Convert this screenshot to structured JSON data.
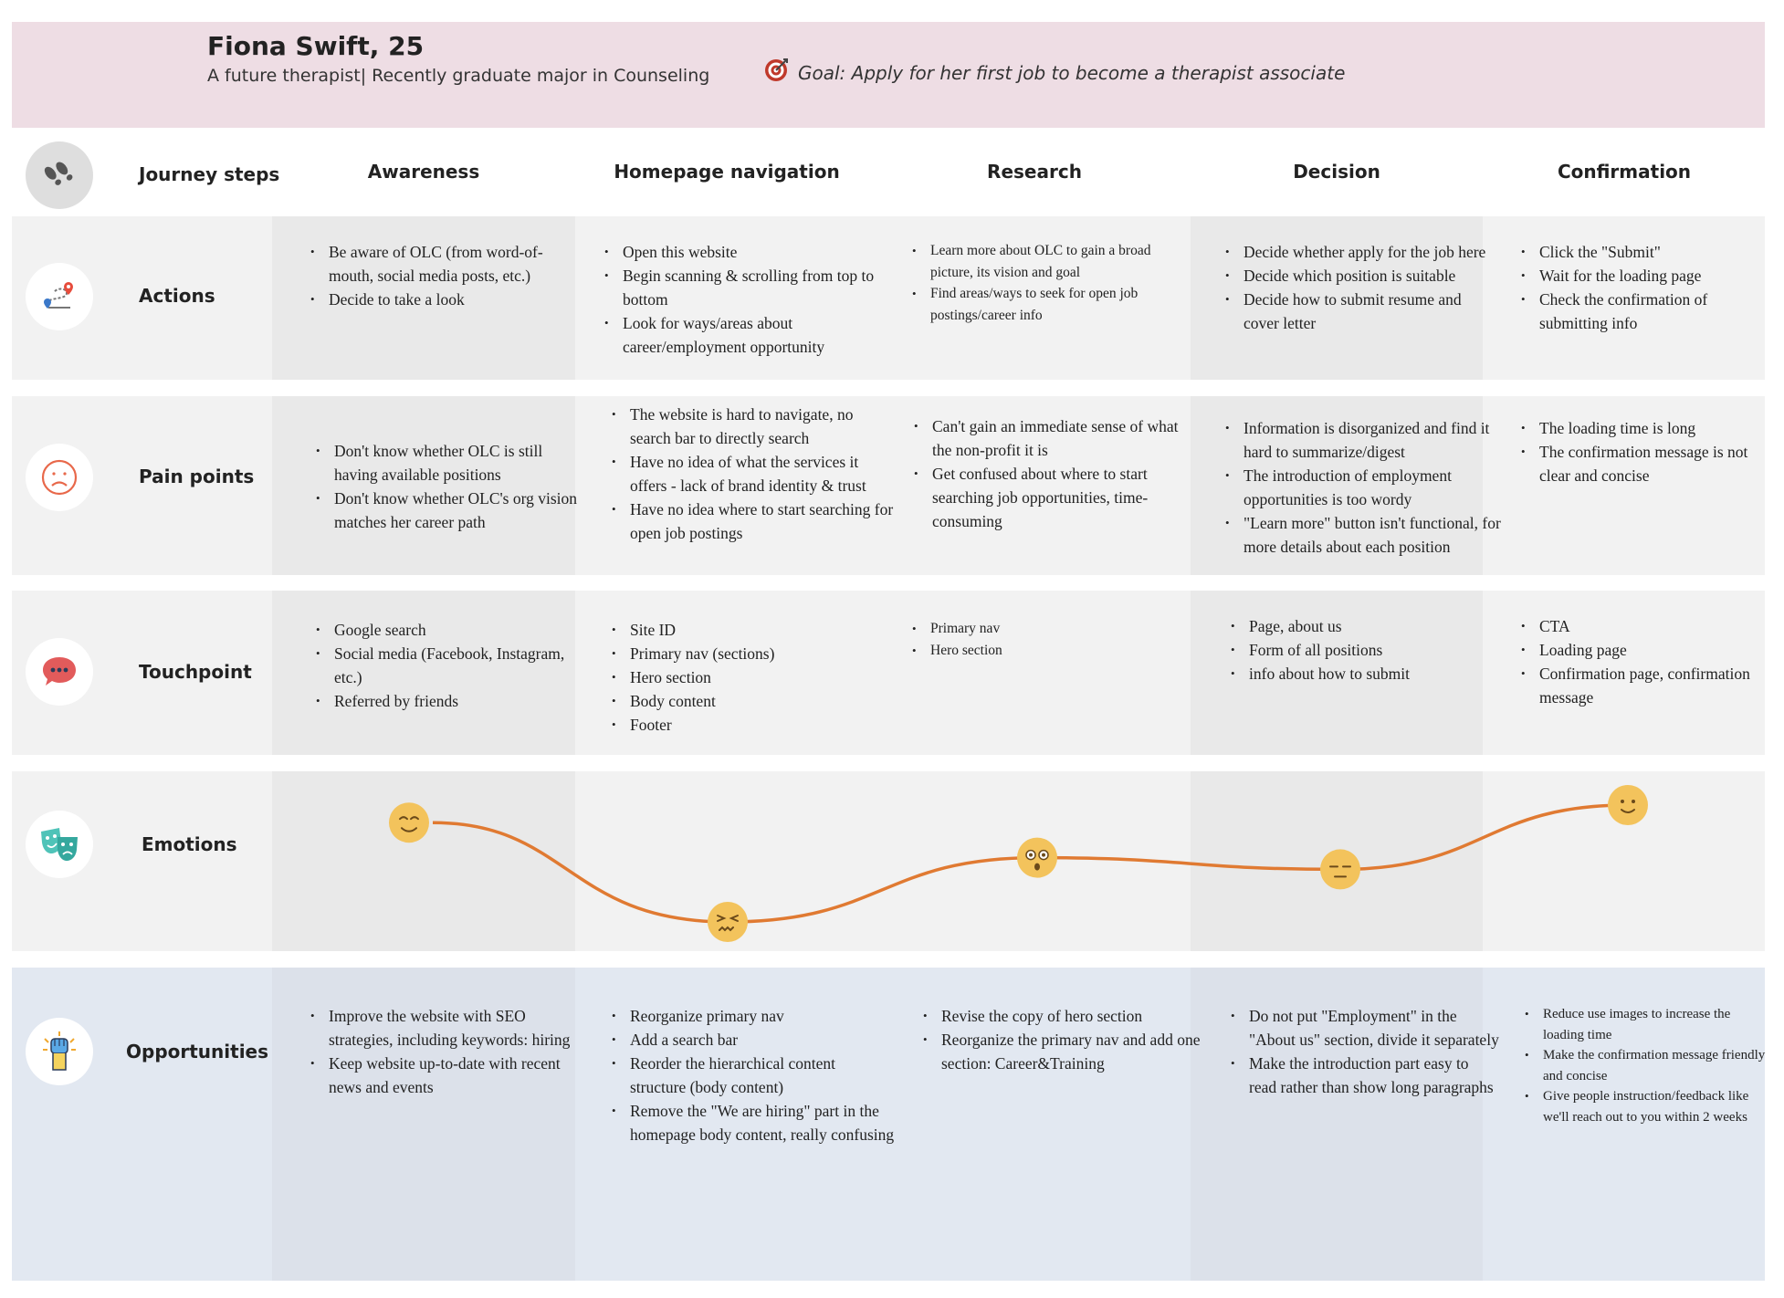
{
  "persona": {
    "name": "Fiona Swift, 25",
    "description": "A future therapist| Recently graduate major in Counseling",
    "goal": "Goal: Apply for her first job to become a therapist associate"
  },
  "journey_steps_label": "Journey steps",
  "stages": [
    "Awareness",
    "Homepage navigation",
    "Research",
    "Decision",
    "Confirmation"
  ],
  "rows": {
    "actions": {
      "label": "Actions",
      "icon": "route-map-icon",
      "cells": [
        [
          "Be aware of OLC (from word-of-mouth, social media posts, etc.)",
          "Decide to take a look"
        ],
        [
          "Open this website",
          "Begin scanning & scrolling from top to bottom",
          "Look for ways/areas about career/employment opportunity"
        ],
        [
          "Learn more about OLC to gain a broad picture, its vision and goal",
          "Find areas/ways to seek for open job postings/career info"
        ],
        [
          "Decide whether apply for the job here",
          "Decide which position is suitable",
          "Decide how to submit resume and cover letter"
        ],
        [
          "Click the \"Submit\"",
          "Wait for the loading page",
          "Check the confirmation of submitting info"
        ]
      ]
    },
    "pain_points": {
      "label": "Pain points",
      "icon": "sad-face-icon",
      "cells": [
        [
          "Don't know whether OLC is still having available positions",
          "Don't know whether OLC's org vision matches her career path"
        ],
        [
          "The website is hard to navigate, no search bar to directly search",
          "Have no idea of what the services it offers - lack of brand identity & trust",
          "Have no idea where to start searching for open job postings"
        ],
        [
          "Can't gain an immediate sense of what the non-profit it is",
          "Get confused about where to start searching job opportunities, time-consuming"
        ],
        [
          "Information is disorganized and find it hard to summarize/digest",
          "The introduction of employment opportunities is too wordy",
          "\"Learn more\" button isn't functional, for more details about each position"
        ],
        [
          "The loading time is long",
          "The confirmation message is not clear and concise"
        ]
      ]
    },
    "touchpoint": {
      "label": "Touchpoint",
      "icon": "chat-bubble-icon",
      "cells": [
        [
          "Google search",
          "Social media (Facebook, Instagram, etc.)",
          "Referred by friends"
        ],
        [
          "Site ID",
          "Primary nav (sections)",
          "Hero section",
          "Body content",
          "Footer"
        ],
        [
          "Primary nav",
          "Hero section"
        ],
        [
          "Page, about us",
          "Form of all positions",
          "info about how to submit"
        ],
        [
          "CTA",
          "Loading page",
          "Confirmation page, confirmation message"
        ]
      ]
    },
    "emotions": {
      "label": "Emotions",
      "icon": "theater-masks-icon",
      "levels": [
        0.85,
        0.0,
        0.55,
        0.45,
        1.0
      ],
      "moods": [
        "content",
        "frustrated",
        "surprised",
        "neutral",
        "happy"
      ]
    },
    "opportunities": {
      "label": "Opportunities",
      "icon": "raised-fist-icon",
      "cells": [
        [
          "Improve the website with SEO strategies, including keywords: hiring",
          "Keep website up-to-date with recent news and events"
        ],
        [
          "Reorganize primary nav",
          "Add a search bar",
          "Reorder the hierarchical content structure (body content)",
          "Remove the \"We are hiring\" part in the homepage body content, really confusing"
        ],
        [
          "Revise the copy of hero section",
          "Reorganize the primary nav and add one section: Career&Training"
        ],
        [
          "Do not put \"Employment\" in the \"About us\" section, divide it separately",
          "Make the introduction part easy to read rather than show long paragraphs"
        ],
        [
          "Reduce use images to increase the loading time",
          "Make the confirmation message friendly and concise",
          "Give people instruction/feedback like we'll reach out to you within 2 weeks"
        ]
      ]
    }
  },
  "colors": {
    "header_bg": "#eedde4",
    "row_bg": "#f2f2f2",
    "row_shade": "#e9e9e9",
    "opportunities_bg": "#e2e8f1",
    "opportunities_shade": "#dce1ea",
    "curve": "#e07a32",
    "emoji": "#f3c35c"
  }
}
